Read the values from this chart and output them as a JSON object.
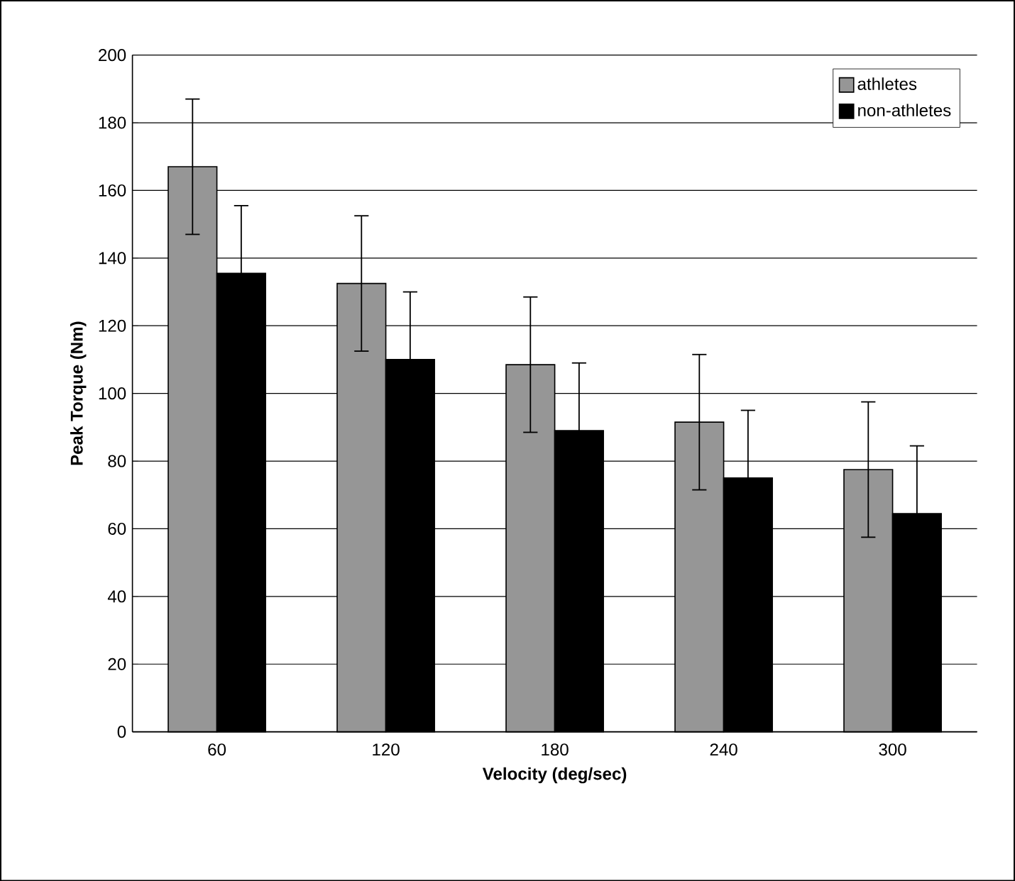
{
  "chart_data": {
    "type": "bar",
    "xlabel": "Velocity (deg/sec)",
    "ylabel": "Peak Torque (Nm)",
    "categories": [
      "60",
      "120",
      "180",
      "240",
      "300"
    ],
    "series": [
      {
        "name": "athletes",
        "color": "#969696",
        "values": [
          167,
          132.5,
          108.5,
          91.5,
          77.5
        ],
        "errors": [
          20,
          20,
          20,
          20,
          20
        ]
      },
      {
        "name": "non-athletes",
        "color": "#000000",
        "values": [
          135.5,
          110,
          89,
          75,
          64.5
        ],
        "errors": [
          20,
          20,
          20,
          20,
          20
        ]
      }
    ],
    "ylim": [
      0,
      200
    ],
    "yticks": [
      0,
      20,
      40,
      60,
      80,
      100,
      120,
      140,
      160,
      180,
      200
    ],
    "grid": "y",
    "legend": "top right"
  }
}
